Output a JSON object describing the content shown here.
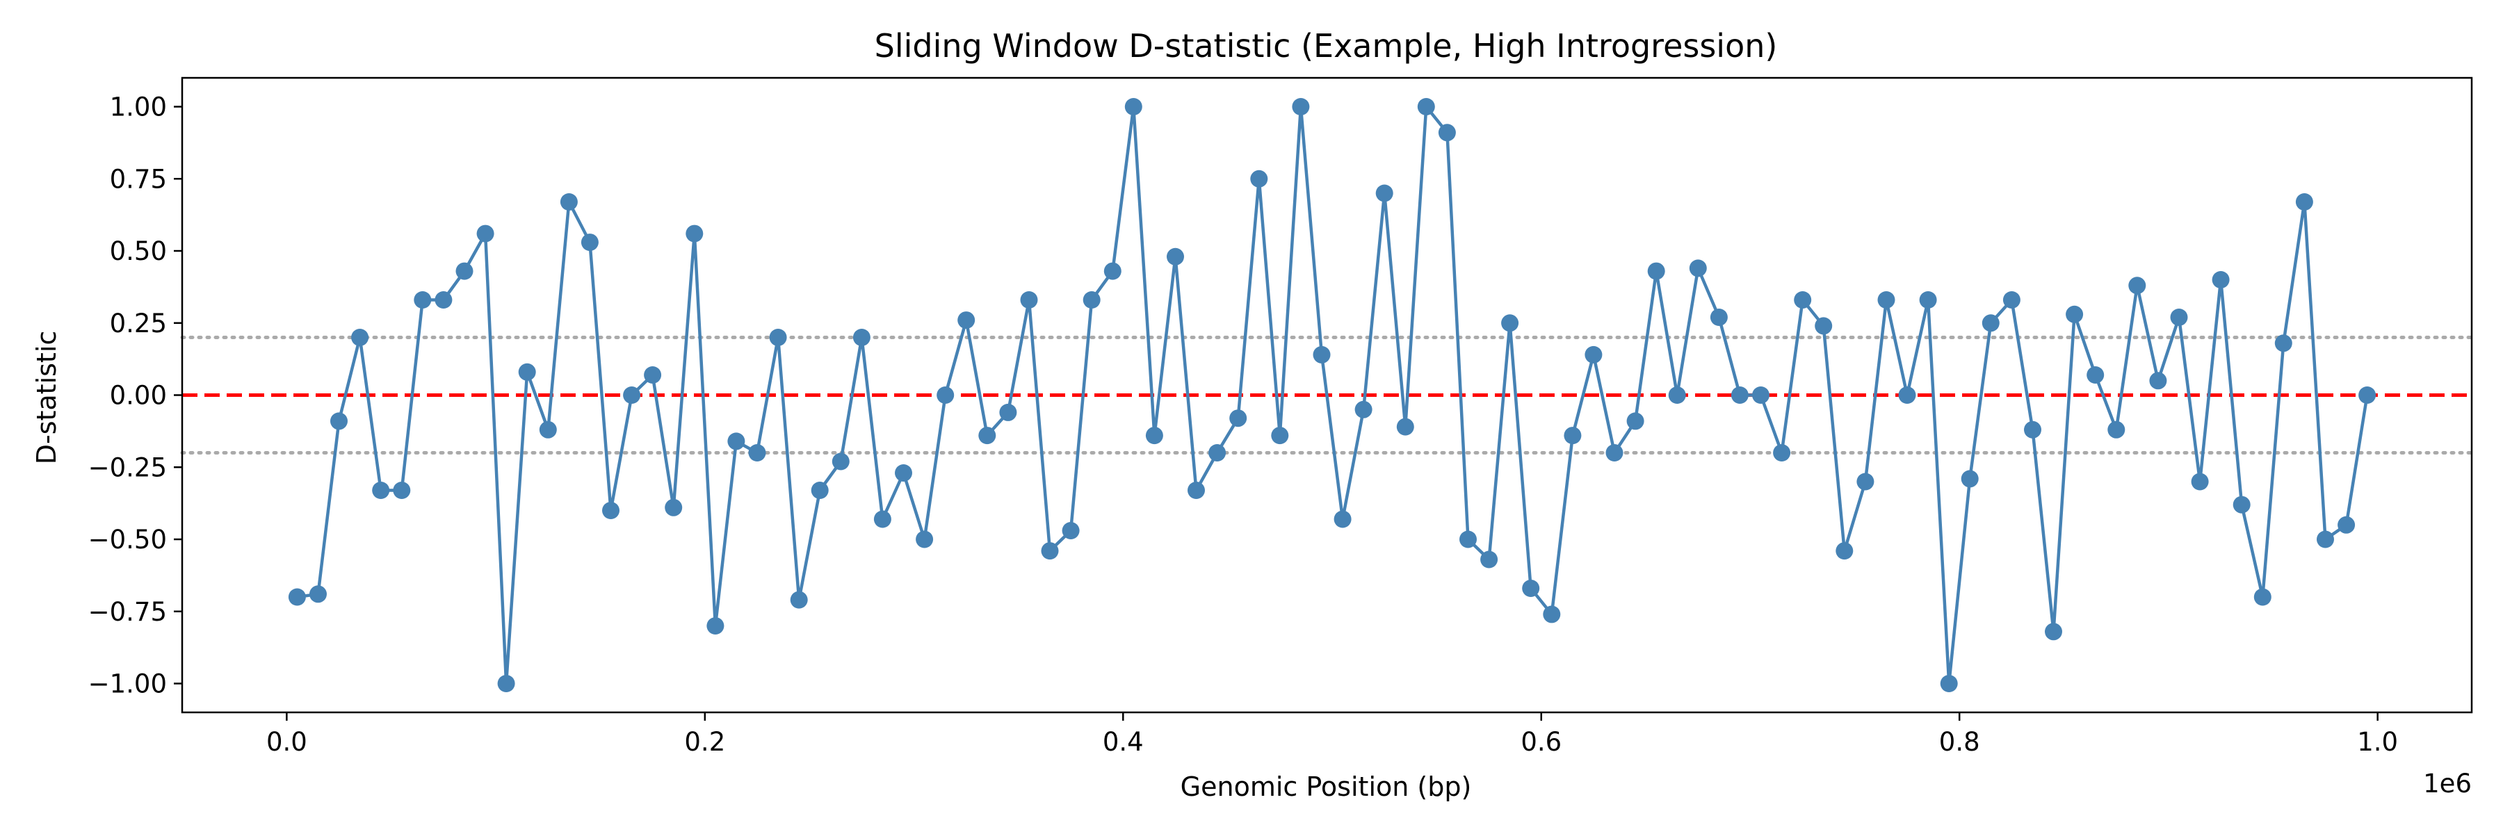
{
  "chart_data": {
    "type": "line",
    "title": "Sliding Window D-statistic (Example, High Introgression)",
    "xlabel": "Genomic Position (bp)",
    "ylabel": "D-statistic",
    "x_offset_label": "1e6",
    "xlim": [
      -50000,
      1045000
    ],
    "ylim": [
      -1.1,
      1.1
    ],
    "xticks": [
      0.0,
      0.2,
      0.4,
      0.6,
      0.8,
      1.0
    ],
    "xtick_labels": [
      "0.0",
      "0.2",
      "0.4",
      "0.6",
      "0.8",
      "1.0"
    ],
    "yticks": [
      1.0,
      0.75,
      0.5,
      0.25,
      0.0,
      -0.25,
      -0.5,
      -0.75,
      -1.0
    ],
    "ytick_labels": [
      "1.00",
      "0.75",
      "0.50",
      "0.25",
      "0.00",
      "−0.25",
      "−0.50",
      "−0.75",
      "−1.00"
    ],
    "grid": false,
    "reference_lines": [
      {
        "y": 0.0,
        "style": "dashed",
        "color": "#ff0000"
      },
      {
        "y": 0.2,
        "style": "dotted",
        "color": "#aaaaaa"
      },
      {
        "y": -0.2,
        "style": "dotted",
        "color": "#aaaaaa"
      }
    ],
    "series": [
      {
        "color": "#4682b4",
        "x": [
          5000,
          15000,
          25000,
          35000,
          45000,
          55000,
          65000,
          75000,
          85000,
          95000,
          105000,
          115000,
          125000,
          135000,
          145000,
          155000,
          165000,
          175000,
          185000,
          195000,
          205000,
          215000,
          225000,
          235000,
          245000,
          255000,
          265000,
          275000,
          285000,
          295000,
          305000,
          315000,
          325000,
          335000,
          345000,
          355000,
          365000,
          375000,
          385000,
          395000,
          405000,
          415000,
          425000,
          435000,
          445000,
          455000,
          465000,
          475000,
          485000,
          495000,
          505000,
          515000,
          525000,
          535000,
          545000,
          555000,
          565000,
          575000,
          585000,
          595000,
          605000,
          615000,
          625000,
          635000,
          645000,
          655000,
          665000,
          675000,
          685000,
          695000,
          705000,
          715000,
          725000,
          735000,
          745000,
          755000,
          765000,
          775000,
          785000,
          795000,
          805000,
          815000,
          825000,
          835000,
          845000,
          855000,
          865000,
          875000,
          885000,
          895000,
          905000,
          915000,
          925000,
          935000,
          945000,
          955000,
          965000,
          975000,
          985000,
          995000
        ],
        "y": [
          -0.7,
          -0.69,
          -0.09,
          0.2,
          -0.33,
          -0.33,
          0.33,
          0.33,
          0.43,
          0.56,
          -1.0,
          0.08,
          -0.12,
          0.67,
          0.53,
          -0.4,
          0.0,
          0.07,
          -0.39,
          0.56,
          -0.8,
          -0.16,
          -0.2,
          0.2,
          -0.71,
          -0.33,
          -0.23,
          0.2,
          -0.43,
          -0.27,
          -0.5,
          0.0,
          0.26,
          -0.14,
          -0.06,
          0.33,
          -0.54,
          -0.47,
          0.33,
          0.43,
          1.0,
          -0.14,
          0.48,
          -0.33,
          -0.2,
          -0.08,
          0.75,
          -0.14,
          1.0,
          0.14,
          -0.43,
          -0.05,
          0.7,
          -0.11,
          1.0,
          0.91,
          -0.5,
          -0.57,
          0.25,
          -0.67,
          -0.76,
          -0.14,
          0.14,
          -0.2,
          -0.09,
          0.43,
          0.0,
          0.44,
          0.27,
          0.0,
          0.0,
          -0.2,
          0.33,
          0.24,
          -0.54,
          -0.3,
          0.33,
          0.0,
          0.33,
          -1.0,
          -0.29,
          0.25,
          0.33,
          -0.12,
          -0.82,
          0.28,
          0.07,
          -0.12,
          0.38,
          0.05,
          0.27,
          -0.3,
          0.4,
          -0.38,
          -0.7,
          0.18,
          0.67,
          -0.5,
          -0.45,
          0.0
        ]
      }
    ]
  }
}
